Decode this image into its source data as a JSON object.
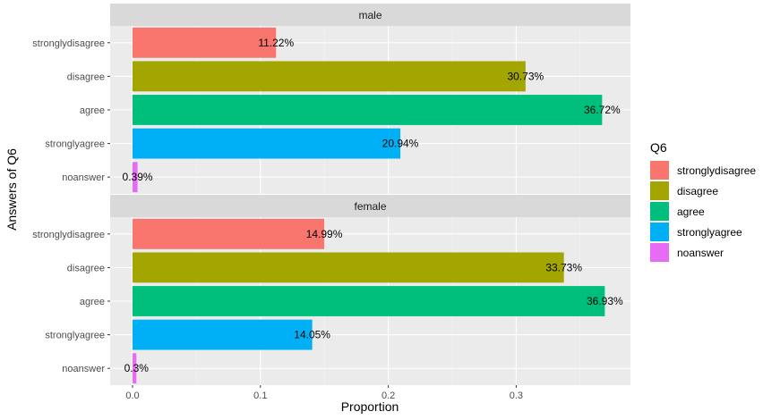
{
  "chart_data": {
    "type": "bar",
    "orientation": "horizontal",
    "xlabel": "Proportion",
    "ylabel": "Answers of Q6",
    "xlim": [
      0,
      0.38
    ],
    "x_ticks": [
      "0.0",
      "0.1",
      "0.2",
      "0.3"
    ],
    "x_tick_values": [
      0,
      0.1,
      0.2,
      0.3
    ],
    "categories": [
      "stronglydisagree",
      "disagree",
      "agree",
      "stronglyagree",
      "noanswer"
    ],
    "colors": [
      "#F8766D",
      "#A3A500",
      "#00BF7D",
      "#00B0F6",
      "#E76BF3"
    ],
    "legend": {
      "title": "Q6",
      "position": "right",
      "entries": [
        "stronglydisagree",
        "disagree",
        "agree",
        "stronglyagree",
        "noanswer"
      ]
    },
    "grid": true,
    "panels": [
      {
        "name": "male",
        "values": [
          0.1122,
          0.3073,
          0.3672,
          0.2094,
          0.0039
        ],
        "labels": [
          "11.22%",
          "30.73%",
          "36.72%",
          "20.94%",
          "0.39%"
        ]
      },
      {
        "name": "female",
        "values": [
          0.1499,
          0.3373,
          0.3693,
          0.1405,
          0.003
        ],
        "labels": [
          "14.99%",
          "33.73%",
          "36.93%",
          "14.05%",
          "0.3%"
        ]
      }
    ]
  }
}
